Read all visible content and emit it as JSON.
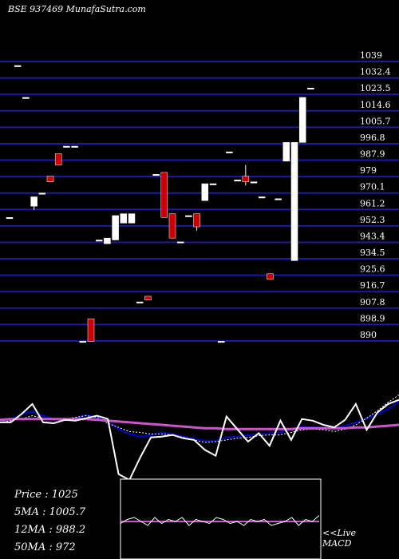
{
  "chart_data": [
    {
      "type": "candlestick",
      "title": "BSE 937469 MunafaSutra.com",
      "ylim": [
        890,
        1039
      ],
      "yticks": [
        "1039",
        "1032.4",
        "1023.5",
        "1014.6",
        "1005.7",
        "996.8",
        "987.9",
        "979",
        "970.1",
        "961.2",
        "952.3",
        "943.4",
        "934.5",
        "925.6",
        "916.7",
        "907.8",
        "898.9",
        "890"
      ],
      "candles": [
        {
          "open": 955,
          "close": 955,
          "high": 955,
          "low": 955,
          "color": "white"
        },
        {
          "open": 1036,
          "close": 1036,
          "high": 1036,
          "low": 1036,
          "color": "white"
        },
        {
          "open": 1019,
          "close": 1019,
          "high": 1019,
          "low": 1019,
          "color": "white"
        },
        {
          "open": 961,
          "close": 966,
          "high": 966,
          "low": 959,
          "color": "white"
        },
        {
          "open": 968,
          "close": 968,
          "high": 968,
          "low": 968,
          "color": "white"
        },
        {
          "open": 977,
          "close": 974,
          "high": 977,
          "low": 974,
          "color": "red"
        },
        {
          "open": 989,
          "close": 983,
          "high": 989,
          "low": 983,
          "color": "red"
        },
        {
          "open": 993,
          "close": 993,
          "high": 993,
          "low": 993,
          "color": "white"
        },
        {
          "open": 993,
          "close": 993,
          "high": 993,
          "low": 993,
          "color": "white"
        },
        {
          "open": 889,
          "close": 889,
          "high": 889,
          "low": 889,
          "color": "white"
        },
        {
          "open": 901,
          "close": 889,
          "high": 901,
          "low": 889,
          "color": "red"
        },
        {
          "open": 943,
          "close": 943,
          "high": 943,
          "low": 943,
          "color": "white"
        },
        {
          "open": 941,
          "close": 944,
          "high": 944,
          "low": 941,
          "color": "white"
        },
        {
          "open": 943,
          "close": 956,
          "high": 956,
          "low": 943,
          "color": "white"
        },
        {
          "open": 952,
          "close": 957,
          "high": 957,
          "low": 952,
          "color": "white"
        },
        {
          "open": 952,
          "close": 957,
          "high": 957,
          "low": 952,
          "color": "white"
        },
        {
          "open": 910,
          "close": 910,
          "high": 910,
          "low": 910,
          "color": "white"
        },
        {
          "open": 913,
          "close": 911,
          "high": 913,
          "low": 911,
          "color": "red"
        },
        {
          "open": 978,
          "close": 978,
          "high": 978,
          "low": 978,
          "color": "white"
        },
        {
          "open": 979,
          "close": 955,
          "high": 979,
          "low": 955,
          "color": "red"
        },
        {
          "open": 957,
          "close": 944,
          "high": 957,
          "low": 944,
          "color": "red"
        },
        {
          "open": 942,
          "close": 942,
          "high": 942,
          "low": 942,
          "color": "white"
        },
        {
          "open": 956,
          "close": 956,
          "high": 956,
          "low": 956,
          "color": "white"
        },
        {
          "open": 957,
          "close": 950,
          "high": 957,
          "low": 948,
          "color": "red"
        },
        {
          "open": 964,
          "close": 973,
          "high": 973,
          "low": 964,
          "color": "white"
        },
        {
          "open": 973,
          "close": 973,
          "high": 973,
          "low": 973,
          "color": "white"
        },
        {
          "open": 889,
          "close": 889,
          "high": 889,
          "low": 889,
          "color": "white"
        },
        {
          "open": 990,
          "close": 990,
          "high": 990,
          "low": 990,
          "color": "white"
        },
        {
          "open": 975,
          "close": 975,
          "high": 975,
          "low": 975,
          "color": "white"
        },
        {
          "open": 977,
          "close": 974,
          "high": 983,
          "low": 972,
          "color": "red"
        },
        {
          "open": 974,
          "close": 974,
          "high": 974,
          "low": 974,
          "color": "white"
        },
        {
          "open": 966,
          "close": 966,
          "high": 966,
          "low": 966,
          "color": "white"
        },
        {
          "open": 925,
          "close": 922,
          "high": 925,
          "low": 922,
          "color": "red"
        },
        {
          "open": 965,
          "close": 965,
          "high": 965,
          "low": 965,
          "color": "white"
        },
        {
          "open": 985,
          "close": 995,
          "high": 995,
          "low": 985,
          "color": "white"
        },
        {
          "open": 932,
          "close": 995,
          "high": 995,
          "low": 932,
          "color": "white"
        },
        {
          "open": 995,
          "close": 1019,
          "high": 1019,
          "low": 995,
          "color": "white"
        },
        {
          "open": 1024,
          "close": 1024,
          "high": 1024,
          "low": 1024,
          "color": "white"
        }
      ],
      "series": [
        {
          "color": "#0000cd",
          "values": [
            960,
            961,
            968,
            971,
            966,
            962,
            960,
            963,
            967,
            964,
            959,
            950,
            944,
            941,
            943,
            946,
            944,
            941,
            938,
            936,
            936,
            940,
            941,
            943,
            944,
            945,
            946,
            950,
            953,
            952,
            952,
            951,
            954,
            958,
            963,
            968,
            974,
            983
          ]
        },
        {
          "color": "#ffffff",
          "values": [
            958,
            960,
            962,
            966,
            963,
            961,
            962,
            964,
            966,
            964,
            957,
            952,
            947,
            946,
            944,
            944,
            943,
            940,
            937,
            934,
            935,
            937,
            939,
            940,
            942,
            943,
            943,
            946,
            949,
            950,
            949,
            947,
            950,
            955,
            963,
            972,
            982,
            991
          ]
        },
        {
          "color": "#cc55cc",
          "values": [
            961,
            962,
            962,
            962,
            962,
            962,
            962,
            962,
            962,
            961,
            960,
            959,
            958,
            957,
            956,
            955,
            954,
            953,
            952,
            951,
            951,
            950,
            950,
            950,
            950,
            950,
            950,
            950,
            951,
            951,
            951,
            951,
            951,
            952,
            952,
            953,
            954,
            955
          ]
        },
        {
          "color": "#ffffff",
          "values": [
            958,
            958,
            968,
            980,
            958,
            957,
            961,
            960,
            963,
            966,
            962,
            896,
            889,
            916,
            940,
            941,
            943,
            939,
            937,
            925,
            918,
            965,
            950,
            935,
            945,
            930,
            960,
            937,
            962,
            960,
            955,
            952,
            961,
            980,
            949,
            970,
            980,
            985
          ]
        }
      ]
    },
    {
      "type": "line",
      "title": "MACD",
      "series": [
        {
          "color": "#cc55cc",
          "values": [
            0,
            0,
            0,
            0,
            0,
            0,
            0,
            0,
            0,
            0,
            0,
            0,
            0,
            0,
            0,
            0,
            0,
            0,
            0,
            0,
            0,
            0,
            0,
            0,
            0,
            0,
            0,
            0,
            0,
            0
          ]
        },
        {
          "color": "#ffffff",
          "values": [
            -1,
            1,
            2,
            0,
            -2,
            2,
            -1,
            1,
            0,
            2,
            -2,
            1,
            0,
            -1,
            2,
            1,
            -1,
            0,
            -2,
            1,
            0,
            1,
            -2,
            -1,
            0,
            2,
            -2,
            1,
            0,
            3
          ]
        }
      ]
    }
  ],
  "stats": {
    "price": "Price   :  1025",
    "ma5": "5MA : 1005.7",
    "ma12": "12MA : 988.2",
    "ma50": "50MA : 972"
  },
  "macd_label": {
    "line1": "<<Live",
    "line2": "MACD"
  }
}
